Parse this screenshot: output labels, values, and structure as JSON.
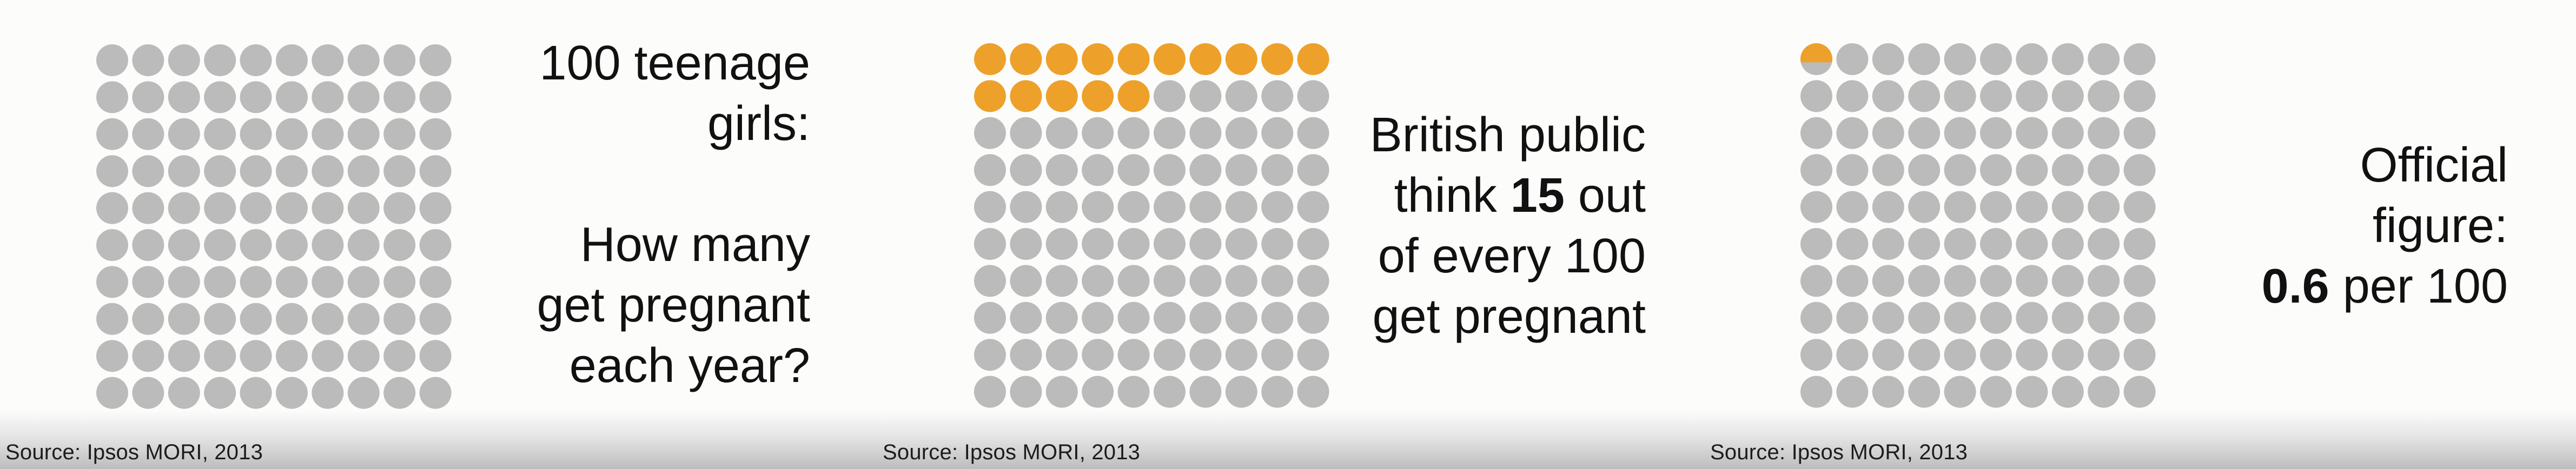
{
  "colors": {
    "dot": "#bbbbbb",
    "highlight": "#eda12a",
    "text": "#111111",
    "background": "#fcfcfb"
  },
  "panels": [
    {
      "caption": {
        "line1": "100 teenage",
        "line2": "girls:",
        "line3": "How many",
        "line4": "get pregnant",
        "line5": "each year?"
      },
      "source": "Source: Ipsos MORI, 2013"
    },
    {
      "caption": {
        "line1": "British public",
        "line2_pre": "think ",
        "line2_value": "15",
        "line2_post": " out",
        "line3": "of every 100",
        "line4": "get pregnant"
      },
      "source": "Source: Ipsos MORI, 2013"
    },
    {
      "caption": {
        "line1": "Official",
        "line2": "figure:",
        "line3_value": "0.6",
        "line3_post": " per 100"
      },
      "source": "Source: Ipsos MORI, 2013"
    }
  ],
  "chart_data": [
    {
      "type": "pictogram",
      "total": 100,
      "rows": 10,
      "columns": 10,
      "highlighted": 0
    },
    {
      "type": "pictogram",
      "total": 100,
      "rows": 10,
      "columns": 10,
      "highlighted": 15,
      "category": "British public"
    },
    {
      "type": "pictogram",
      "total": 100,
      "rows": 10,
      "columns": 10,
      "highlighted": 0.6,
      "category": "Official figure"
    }
  ]
}
